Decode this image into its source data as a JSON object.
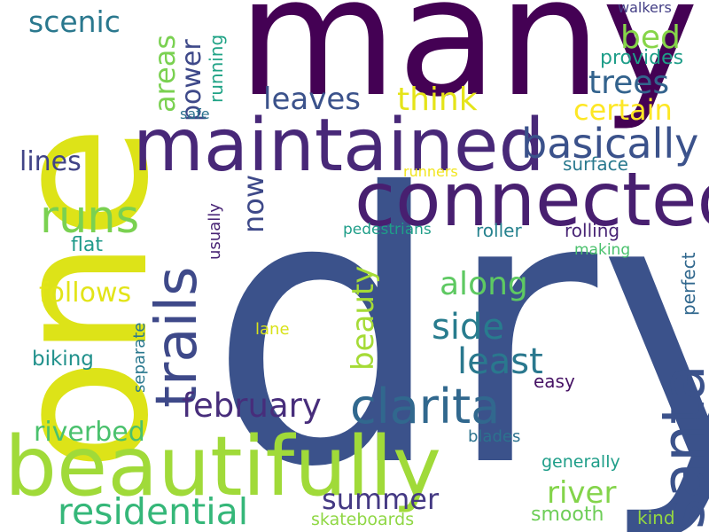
{
  "words": [
    {
      "text": "dry",
      "color": "#3b528b"
    },
    {
      "text": "one",
      "color": "#dde318"
    },
    {
      "text": "many",
      "color": "#440154"
    },
    {
      "text": "beautifully",
      "color": "#a0da39"
    },
    {
      "text": "connected",
      "color": "#481f70"
    },
    {
      "text": "maintained",
      "color": "#482878"
    },
    {
      "text": "santa",
      "color": "#3b528b"
    },
    {
      "text": "trails",
      "color": "#3e4989"
    },
    {
      "text": "clarita",
      "color": "#31688e"
    },
    {
      "text": "runs",
      "color": "#7ad151"
    },
    {
      "text": "basically",
      "color": "#3b528b"
    },
    {
      "text": "residential",
      "color": "#35b779"
    },
    {
      "text": "february",
      "color": "#472d7b"
    },
    {
      "text": "least",
      "color": "#2a788e"
    },
    {
      "text": "side",
      "color": "#287c8e"
    },
    {
      "text": "along",
      "color": "#5ec962"
    },
    {
      "text": "beauty",
      "color": "#a5db36"
    },
    {
      "text": "river",
      "color": "#84d44b"
    },
    {
      "text": "summer",
      "color": "#443983"
    },
    {
      "text": "riverbed",
      "color": "#4ac16d"
    },
    {
      "text": "follows",
      "color": "#e2e418"
    },
    {
      "text": "lines",
      "color": "#414487"
    },
    {
      "text": "scenic",
      "color": "#2a788e"
    },
    {
      "text": "areas",
      "color": "#7ad151"
    },
    {
      "text": "power",
      "color": "#3e4989"
    },
    {
      "text": "leaves",
      "color": "#3b528b"
    },
    {
      "text": "think",
      "color": "#e5e419"
    },
    {
      "text": "certain",
      "color": "#fde725"
    },
    {
      "text": "trees",
      "color": "#33638d"
    },
    {
      "text": "bed",
      "color": "#86d549"
    },
    {
      "text": "provides",
      "color": "#1f9e89"
    },
    {
      "text": "walkers",
      "color": "#433e85"
    },
    {
      "text": "running",
      "color": "#20a386"
    },
    {
      "text": "safe",
      "color": "#2c728e"
    },
    {
      "text": "now",
      "color": "#3e4989"
    },
    {
      "text": "surface",
      "color": "#29798e"
    },
    {
      "text": "runners",
      "color": "#f1e51d"
    },
    {
      "text": "usually",
      "color": "#482475"
    },
    {
      "text": "pedestrians",
      "color": "#1f9e89"
    },
    {
      "text": "roller",
      "color": "#26828e"
    },
    {
      "text": "rolling",
      "color": "#482475"
    },
    {
      "text": "making",
      "color": "#4ac16d"
    },
    {
      "text": "perfect",
      "color": "#31688e"
    },
    {
      "text": "flat",
      "color": "#1f9a8a"
    },
    {
      "text": "lane",
      "color": "#d8e219"
    },
    {
      "text": "biking",
      "color": "#21918c"
    },
    {
      "text": "separate",
      "color": "#2a788e"
    },
    {
      "text": "easy",
      "color": "#471365"
    },
    {
      "text": "blades",
      "color": "#2c728e"
    },
    {
      "text": "generally",
      "color": "#1f9e89"
    },
    {
      "text": "smooth",
      "color": "#6ece58"
    },
    {
      "text": "kind",
      "color": "#95d840"
    },
    {
      "text": "skateboards",
      "color": "#8fd744"
    }
  ]
}
